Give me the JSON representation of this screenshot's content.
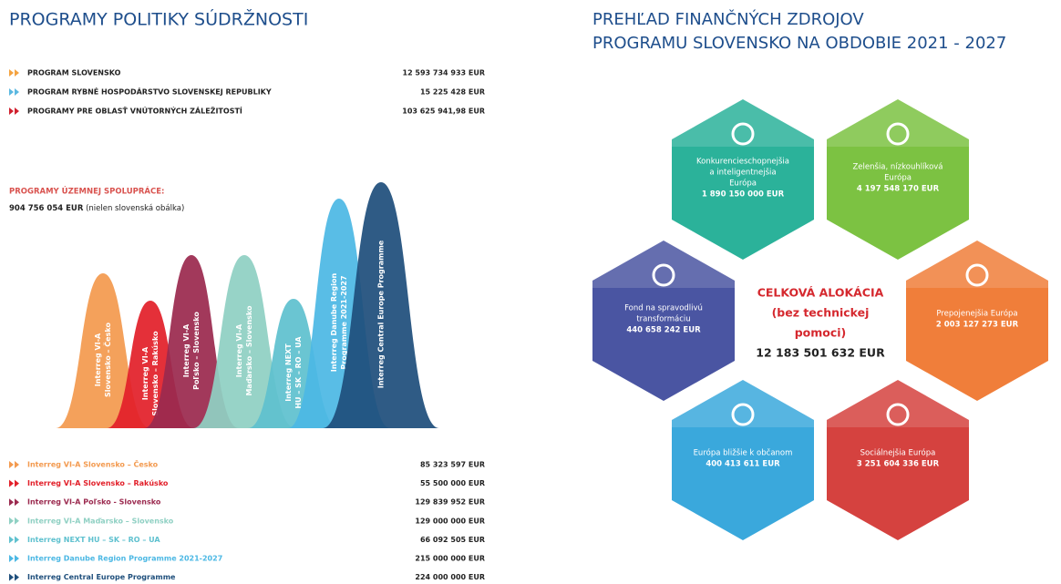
{
  "left": {
    "title": "PROGRAMY POLITIKY SÚDRŽNOSTI",
    "programs": [
      {
        "name": "PROGRAM SLOVENSKO",
        "amount": "12 593 734 933 EUR",
        "color": "#f4a340"
      },
      {
        "name": "PROGRAM RYBNÉ HOSPODÁRSTVO SLOVENSKEJ REPUBLIKY",
        "amount": "15 225 428 EUR",
        "color": "#5bb8e0"
      },
      {
        "name": "PROGRAMY PRE OBLASŤ VNÚTORNÝCH ZÁLEŽITOSTÍ",
        "amount": "103 625 941,98 EUR",
        "color": "#d0202e"
      }
    ],
    "cooperation_heading": "PROGRAMY ÚZEMNEJ SPOLUPRÁCE:",
    "cooperation_total": "904 756 054 EUR",
    "cooperation_note": "(nielen slovenská obálka)",
    "bells": [
      {
        "lines": [
          "Interreg VI-A",
          "Slovensko – Česko"
        ],
        "color": "#f39a4f"
      },
      {
        "lines": [
          "Interreg VI-A",
          "Slovensko – Rakúsko"
        ],
        "color": "#e2202a"
      },
      {
        "lines": [
          "Interreg VI-A",
          "Poľsko – Slovensko"
        ],
        "color": "#9b2a4f"
      },
      {
        "lines": [
          "Interreg VI-A",
          "Maďarsko – Slovensko"
        ],
        "color": "#8fd0c3"
      },
      {
        "lines": [
          "Interreg NEXT",
          "HU – SK – RO – UA"
        ],
        "color": "#5fc1cf"
      },
      {
        "lines": [
          "Interreg Danube Region",
          "Programme 2021-2027"
        ],
        "color": "#4cb8e4"
      },
      {
        "lines": [
          "Interreg Central Europe Programme"
        ],
        "color": "#1f4f7c"
      }
    ],
    "interreg": [
      {
        "name": "Interreg VI-A Slovensko – Česko",
        "amount": "85 323 597 EUR",
        "color": "#f39a4f"
      },
      {
        "name": "Interreg VI-A Slovensko – Rakúsko",
        "amount": "55 500 000 EUR",
        "color": "#e2202a"
      },
      {
        "name": "Interreg VI-A Poľsko - Slovensko",
        "amount": "129 839 952 EUR",
        "color": "#9b2a4f"
      },
      {
        "name": "Interreg VI-A Maďarsko – Slovensko",
        "amount": "129 000 000 EUR",
        "color": "#8fd0c3"
      },
      {
        "name": "Interreg NEXT HU – SK – RO – UA",
        "amount": "66 092 505 EUR",
        "color": "#5fc1cf"
      },
      {
        "name": "Interreg Danube Region Programme 2021-2027",
        "amount": "215 000 000 EUR",
        "color": "#4cb8e4"
      },
      {
        "name": "Interreg Central Europe Programme",
        "amount": "224 000 000 EUR",
        "color": "#1f4f7c"
      }
    ]
  },
  "right": {
    "title": [
      "PREHĽAD FINANČNÝCH ZDROJOV",
      "PROGRAMU SLOVENSKO NA OBDOBIE 2021 - 2027"
    ],
    "center": {
      "heading": [
        "CELKOVÁ ALOKÁCIA",
        "(bez technickej",
        "pomoci)"
      ],
      "amount": "12 183 501 632 EUR"
    },
    "hexagons": [
      {
        "lines": [
          "Konkurencieschopnejšia",
          "a inteligentnejšia",
          "Európa"
        ],
        "amount": "1 890 150 000 EUR",
        "color": "#2bb29a"
      },
      {
        "lines": [
          "Zelenšia, nízkouhlíková",
          "Európa"
        ],
        "amount": "4 197 548 170 EUR",
        "color": "#7cc242"
      },
      {
        "lines": [
          "Fond na spravodlivú",
          "transformáciu"
        ],
        "amount": "440 658 242 EUR",
        "color": "#4a55a2"
      },
      {
        "lines": [
          "Prepojenejšia Európa"
        ],
        "amount": "2 003 127 273 EUR",
        "color": "#f07e3a"
      },
      {
        "lines": [
          "Európa bližšie k občanom"
        ],
        "amount": "400 413 611 EUR",
        "color": "#3aa8dc"
      },
      {
        "lines": [
          "Sociálnejšia Európa"
        ],
        "amount": "3 251 604 336 EUR",
        "color": "#d5423f"
      }
    ]
  }
}
